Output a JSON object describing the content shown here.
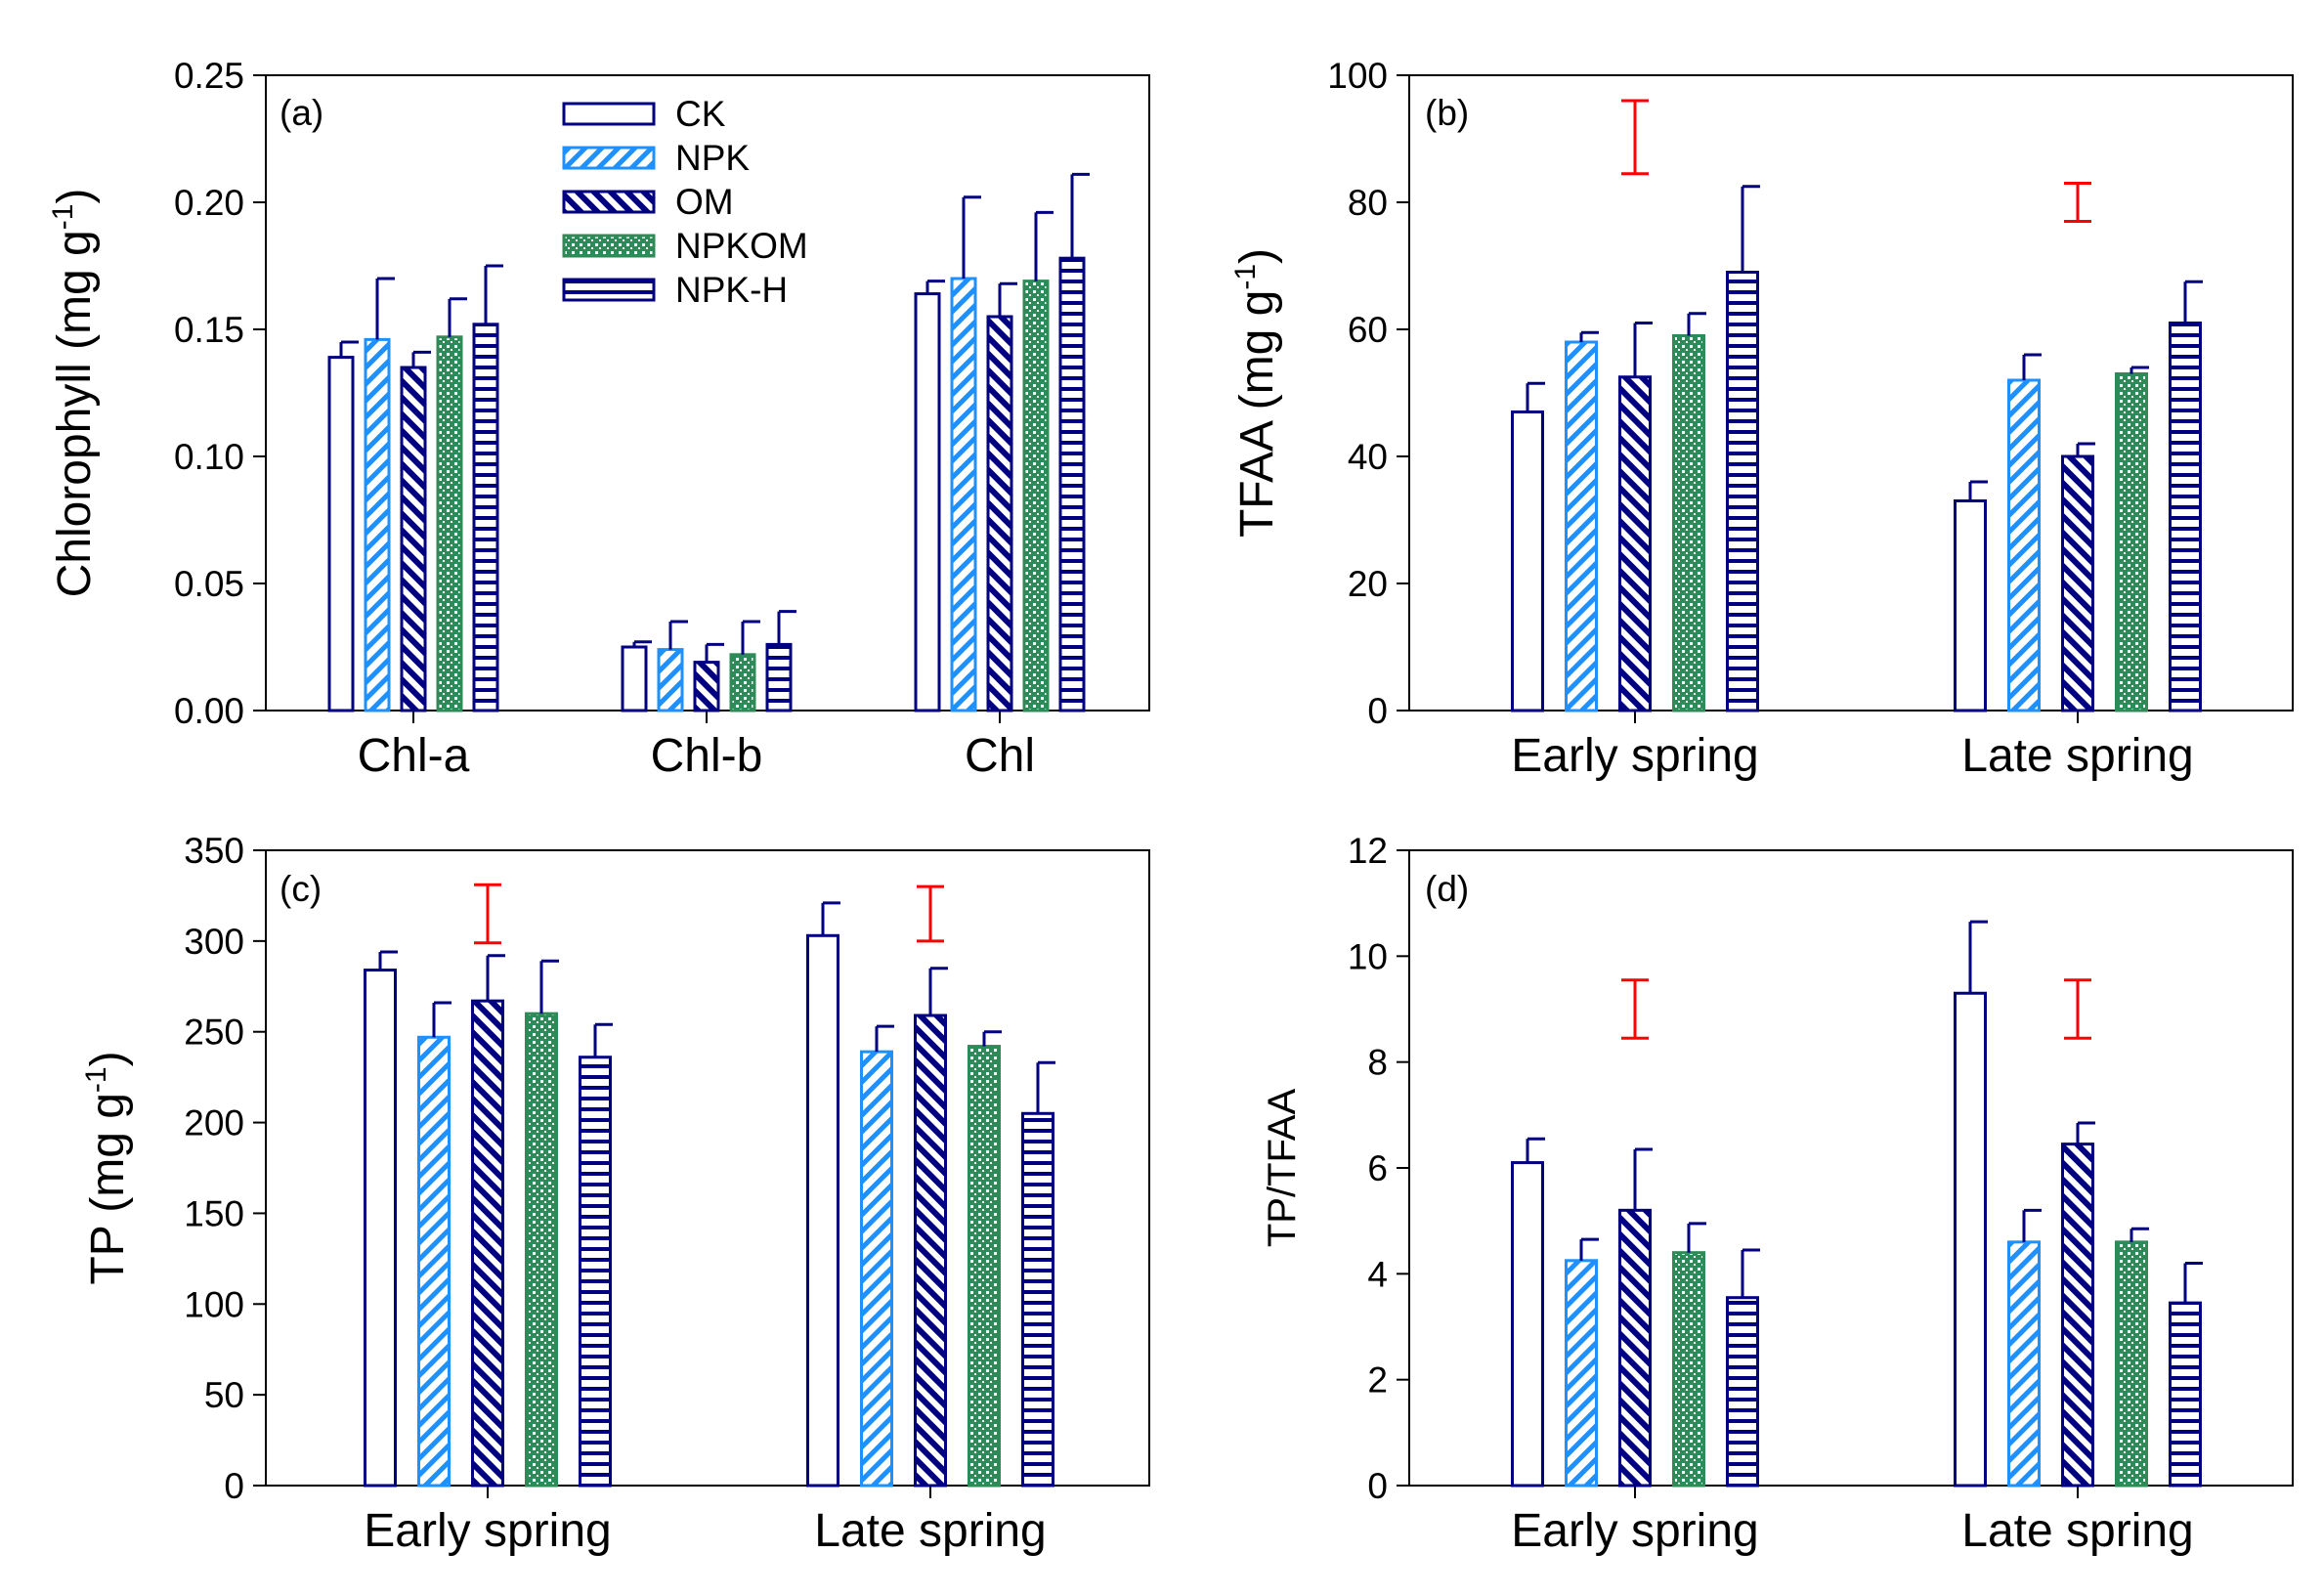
{
  "colors": {
    "outline": "#000080",
    "npk": "#1e90ff",
    "om": "#000080",
    "npkom": "#2e8b57",
    "npkh": "#000080",
    "lsd": "#ff0000",
    "axis": "#000000"
  },
  "legend": [
    "CK",
    "NPK",
    "OM",
    "NPKOM",
    "NPK-H"
  ],
  "chart_data": [
    {
      "id": "a",
      "type": "bar",
      "panel_label": "(a)",
      "title": "",
      "ylabel": "Chlorophyll (mg g",
      "ylabel_sup": "-1",
      "ylabel_end": ")",
      "categories": [
        "Chl-a",
        "Chl-b",
        "Chl"
      ],
      "ylim": [
        0,
        0.25
      ],
      "yticks": [
        "0.00",
        "0.05",
        "0.10",
        "0.15",
        "0.20",
        "0.25"
      ],
      "series": [
        {
          "name": "CK",
          "values": [
            0.139,
            0.025,
            0.164
          ],
          "errors": [
            0.006,
            0.002,
            0.005
          ]
        },
        {
          "name": "NPK",
          "values": [
            0.146,
            0.024,
            0.17
          ],
          "errors": [
            0.024,
            0.011,
            0.032
          ]
        },
        {
          "name": "OM",
          "values": [
            0.135,
            0.019,
            0.155
          ],
          "errors": [
            0.006,
            0.007,
            0.013
          ]
        },
        {
          "name": "NPKOM",
          "values": [
            0.147,
            0.022,
            0.169
          ],
          "errors": [
            0.015,
            0.013,
            0.027
          ]
        },
        {
          "name": "NPK-H",
          "values": [
            0.152,
            0.026,
            0.178
          ],
          "errors": [
            0.023,
            0.013,
            0.033
          ]
        }
      ],
      "lsd": []
    },
    {
      "id": "b",
      "type": "bar",
      "panel_label": "(b)",
      "title": "",
      "ylabel": "TFAA (mg g",
      "ylabel_sup": "-1",
      "ylabel_end": ")",
      "categories": [
        "Early spring",
        "Late spring"
      ],
      "ylim": [
        0,
        100
      ],
      "yticks": [
        "0",
        "20",
        "40",
        "60",
        "80",
        "100"
      ],
      "series": [
        {
          "name": "CK",
          "values": [
            47,
            33
          ],
          "errors": [
            4.5,
            3
          ]
        },
        {
          "name": "NPK",
          "values": [
            58,
            52
          ],
          "errors": [
            1.5,
            4
          ]
        },
        {
          "name": "OM",
          "values": [
            52.5,
            40
          ],
          "errors": [
            8.5,
            2
          ]
        },
        {
          "name": "NPKOM",
          "values": [
            59,
            53
          ],
          "errors": [
            3.5,
            1
          ]
        },
        {
          "name": "NPK-H",
          "values": [
            69,
            61
          ],
          "errors": [
            13.5,
            6.5
          ]
        }
      ],
      "lsd": [
        {
          "category": 0,
          "low": 84.5,
          "high": 96
        },
        {
          "category": 1,
          "low": 77,
          "high": 83
        }
      ]
    },
    {
      "id": "c",
      "type": "bar",
      "panel_label": "(c)",
      "title": "",
      "ylabel": "TP (mg g",
      "ylabel_sup": "-1",
      "ylabel_end": ")",
      "categories": [
        "Early spring",
        "Late spring"
      ],
      "ylim": [
        0,
        350
      ],
      "yticks": [
        "0",
        "50",
        "100",
        "150",
        "200",
        "250",
        "300",
        "350"
      ],
      "series": [
        {
          "name": "CK",
          "values": [
            284,
            303
          ],
          "errors": [
            10,
            18
          ]
        },
        {
          "name": "NPK",
          "values": [
            247,
            239
          ],
          "errors": [
            19,
            14
          ]
        },
        {
          "name": "OM",
          "values": [
            267,
            259
          ],
          "errors": [
            25,
            26
          ]
        },
        {
          "name": "NPKOM",
          "values": [
            260,
            242
          ],
          "errors": [
            29,
            8
          ]
        },
        {
          "name": "NPK-H",
          "values": [
            236,
            205
          ],
          "errors": [
            18,
            28
          ]
        }
      ],
      "lsd": [
        {
          "category": 0,
          "low": 299,
          "high": 331
        },
        {
          "category": 1,
          "low": 300,
          "high": 330
        }
      ]
    },
    {
      "id": "d",
      "type": "bar",
      "panel_label": "(d)",
      "title": "",
      "ylabel": "TP/TFAA",
      "ylabel_sup": "",
      "ylabel_end": "",
      "categories": [
        "Early spring",
        "Late spring"
      ],
      "ylim": [
        0,
        12
      ],
      "yticks": [
        "0",
        "2",
        "4",
        "6",
        "8",
        "10",
        "12"
      ],
      "series": [
        {
          "name": "CK",
          "values": [
            6.1,
            9.3
          ],
          "errors": [
            0.45,
            1.35
          ]
        },
        {
          "name": "NPK",
          "values": [
            4.25,
            4.6
          ],
          "errors": [
            0.4,
            0.6
          ]
        },
        {
          "name": "OM",
          "values": [
            5.2,
            6.45
          ],
          "errors": [
            1.15,
            0.4
          ]
        },
        {
          "name": "NPKOM",
          "values": [
            4.4,
            4.6
          ],
          "errors": [
            0.55,
            0.25
          ]
        },
        {
          "name": "NPK-H",
          "values": [
            3.55,
            3.45
          ],
          "errors": [
            0.9,
            0.75
          ]
        }
      ],
      "lsd": [
        {
          "category": 0,
          "low": 8.45,
          "high": 9.55
        },
        {
          "category": 1,
          "low": 8.45,
          "high": 9.55
        }
      ]
    }
  ]
}
